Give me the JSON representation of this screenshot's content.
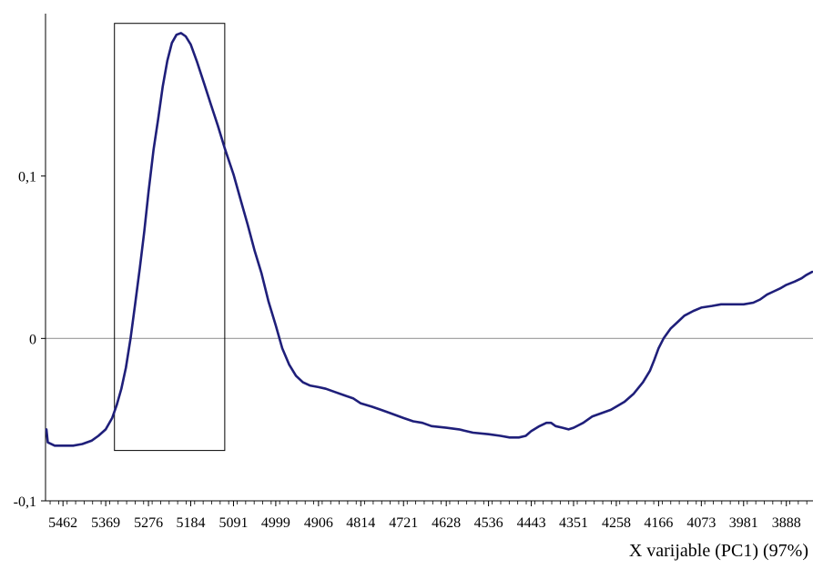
{
  "chart_data": {
    "type": "line",
    "xlabel": "X varijable (PC1) (97%)",
    "ylabel": "",
    "x_reversed": true,
    "xlim": [
      5500,
      3830
    ],
    "ylim": [
      -0.1,
      0.2
    ],
    "yticks": [
      {
        "value": -0.1,
        "label": "-0,1"
      },
      {
        "value": 0,
        "label": "0"
      },
      {
        "value": 0.1,
        "label": "0,1"
      }
    ],
    "xticks": [
      {
        "value": 5462,
        "label": "5462"
      },
      {
        "value": 5369,
        "label": "5369"
      },
      {
        "value": 5276,
        "label": "5276"
      },
      {
        "value": 5184,
        "label": "5184"
      },
      {
        "value": 5091,
        "label": "5091"
      },
      {
        "value": 4999,
        "label": "4999"
      },
      {
        "value": 4906,
        "label": "4906"
      },
      {
        "value": 4814,
        "label": "4814"
      },
      {
        "value": 4721,
        "label": "4721"
      },
      {
        "value": 4628,
        "label": "4628"
      },
      {
        "value": 4536,
        "label": "4536"
      },
      {
        "value": 4443,
        "label": "4443"
      },
      {
        "value": 4351,
        "label": "4351"
      },
      {
        "value": 4258,
        "label": "4258"
      },
      {
        "value": 4166,
        "label": "4166"
      },
      {
        "value": 4073,
        "label": "4073"
      },
      {
        "value": 3981,
        "label": "3981"
      },
      {
        "value": 3888,
        "label": "3888"
      }
    ],
    "zero_line": true,
    "highlight_box": {
      "x_range": [
        5350,
        5110
      ],
      "y_range": [
        -0.069,
        0.194
      ]
    },
    "line_color": "#1f1f7a",
    "series": [
      {
        "values": [
          [
            5498,
            -0.056
          ],
          [
            5495,
            -0.064
          ],
          [
            5480,
            -0.066
          ],
          [
            5462,
            -0.066
          ],
          [
            5440,
            -0.066
          ],
          [
            5420,
            -0.065
          ],
          [
            5400,
            -0.063
          ],
          [
            5385,
            -0.06
          ],
          [
            5369,
            -0.056
          ],
          [
            5355,
            -0.049
          ],
          [
            5345,
            -0.041
          ],
          [
            5335,
            -0.031
          ],
          [
            5325,
            -0.018
          ],
          [
            5315,
            0.0
          ],
          [
            5305,
            0.021
          ],
          [
            5295,
            0.043
          ],
          [
            5285,
            0.066
          ],
          [
            5276,
            0.09
          ],
          [
            5265,
            0.116
          ],
          [
            5255,
            0.135
          ],
          [
            5245,
            0.155
          ],
          [
            5235,
            0.171
          ],
          [
            5225,
            0.182
          ],
          [
            5215,
            0.187
          ],
          [
            5205,
            0.188
          ],
          [
            5195,
            0.186
          ],
          [
            5184,
            0.181
          ],
          [
            5170,
            0.17
          ],
          [
            5155,
            0.157
          ],
          [
            5140,
            0.144
          ],
          [
            5125,
            0.131
          ],
          [
            5110,
            0.117
          ],
          [
            5091,
            0.101
          ],
          [
            5075,
            0.085
          ],
          [
            5060,
            0.07
          ],
          [
            5045,
            0.054
          ],
          [
            5030,
            0.04
          ],
          [
            5015,
            0.023
          ],
          [
            4999,
            0.008
          ],
          [
            4985,
            -0.006
          ],
          [
            4970,
            -0.016
          ],
          [
            4955,
            -0.023
          ],
          [
            4940,
            -0.027
          ],
          [
            4925,
            -0.029
          ],
          [
            4906,
            -0.03
          ],
          [
            4890,
            -0.031
          ],
          [
            4870,
            -0.033
          ],
          [
            4850,
            -0.035
          ],
          [
            4830,
            -0.037
          ],
          [
            4814,
            -0.04
          ],
          [
            4790,
            -0.042
          ],
          [
            4770,
            -0.044
          ],
          [
            4750,
            -0.046
          ],
          [
            4721,
            -0.049
          ],
          [
            4700,
            -0.051
          ],
          [
            4680,
            -0.052
          ],
          [
            4660,
            -0.054
          ],
          [
            4628,
            -0.055
          ],
          [
            4600,
            -0.056
          ],
          [
            4570,
            -0.058
          ],
          [
            4536,
            -0.059
          ],
          [
            4510,
            -0.06
          ],
          [
            4490,
            -0.061
          ],
          [
            4470,
            -0.061
          ],
          [
            4455,
            -0.06
          ],
          [
            4443,
            -0.057
          ],
          [
            4425,
            -0.054
          ],
          [
            4410,
            -0.052
          ],
          [
            4400,
            -0.052
          ],
          [
            4390,
            -0.054
          ],
          [
            4375,
            -0.055
          ],
          [
            4362,
            -0.056
          ],
          [
            4351,
            -0.055
          ],
          [
            4330,
            -0.052
          ],
          [
            4310,
            -0.048
          ],
          [
            4290,
            -0.046
          ],
          [
            4270,
            -0.044
          ],
          [
            4258,
            -0.042
          ],
          [
            4240,
            -0.039
          ],
          [
            4220,
            -0.034
          ],
          [
            4200,
            -0.027
          ],
          [
            4185,
            -0.02
          ],
          [
            4175,
            -0.013
          ],
          [
            4166,
            -0.006
          ],
          [
            4155,
            0.0
          ],
          [
            4140,
            0.006
          ],
          [
            4125,
            0.01
          ],
          [
            4110,
            0.014
          ],
          [
            4090,
            0.017
          ],
          [
            4073,
            0.019
          ],
          [
            4050,
            0.02
          ],
          [
            4030,
            0.021
          ],
          [
            4010,
            0.021
          ],
          [
            3981,
            0.021
          ],
          [
            3960,
            0.022
          ],
          [
            3945,
            0.024
          ],
          [
            3930,
            0.027
          ],
          [
            3915,
            0.029
          ],
          [
            3900,
            0.031
          ],
          [
            3888,
            0.033
          ],
          [
            3870,
            0.035
          ],
          [
            3855,
            0.037
          ],
          [
            3845,
            0.039
          ],
          [
            3832,
            0.041
          ]
        ]
      }
    ]
  }
}
